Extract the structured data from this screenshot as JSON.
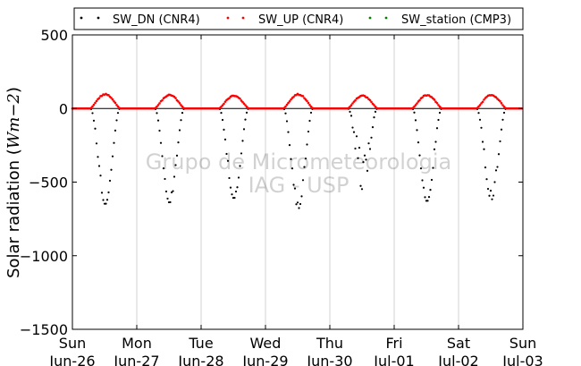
{
  "chart_data": {
    "type": "scatter",
    "ylabel": "Solar radiation ($Wm-2$)",
    "ylabel_text": "Solar radiation (",
    "ylabel_unit_math": "Wm−2",
    "ylabel_close": ")",
    "ylim": [
      -1500,
      500
    ],
    "yticks": [
      500,
      0,
      -500,
      -1000,
      -1500
    ],
    "ytick_labels": [
      "500",
      "0",
      "−500",
      "−1000",
      "−1500"
    ],
    "x_range_days": [
      "Jun-26",
      "Jul-03"
    ],
    "xtick_labels": [
      [
        "Sun",
        "Jun-26"
      ],
      [
        "Mon",
        "Jun-27"
      ],
      [
        "Tue",
        "Jun-28"
      ],
      [
        "Wed",
        "Jun-29"
      ],
      [
        "Thu",
        "Jun-30"
      ],
      [
        "Fri",
        "Jul-01"
      ],
      [
        "Sat",
        "Jul-02"
      ],
      [
        "Sun",
        "Jul-03"
      ]
    ],
    "grid": "vertical",
    "legend_placement": "top, above plot",
    "series": [
      {
        "name": "SW_DN (CNR4)",
        "color": "#000000",
        "daily_peaks": [
          {
            "day": "Jun-26",
            "min": -650
          },
          {
            "day": "Jun-27",
            "min": -640
          },
          {
            "day": "Jun-28",
            "min": -610
          },
          {
            "day": "Jun-29",
            "min": -680
          },
          {
            "day": "Jun-30",
            "min": -550
          },
          {
            "day": "Jul-01",
            "min": -630
          },
          {
            "day": "Jul-02",
            "min": -620
          }
        ]
      },
      {
        "name": "SW_UP (CNR4)",
        "color": "#ff0000",
        "daily_peaks": [
          {
            "day": "Jun-26",
            "max": 100
          },
          {
            "day": "Jun-27",
            "max": 95
          },
          {
            "day": "Jun-28",
            "max": 90
          },
          {
            "day": "Jun-29",
            "max": 100
          },
          {
            "day": "Jun-30",
            "max": 90
          },
          {
            "day": "Jul-01",
            "max": 95
          },
          {
            "day": "Jul-02",
            "max": 95
          }
        ]
      },
      {
        "name": "SW_station (CMP3)",
        "color": "#008000",
        "daily_peaks": []
      }
    ],
    "watermark": [
      "Grupo de Micrometeorologia",
      "IAG - USP"
    ]
  }
}
